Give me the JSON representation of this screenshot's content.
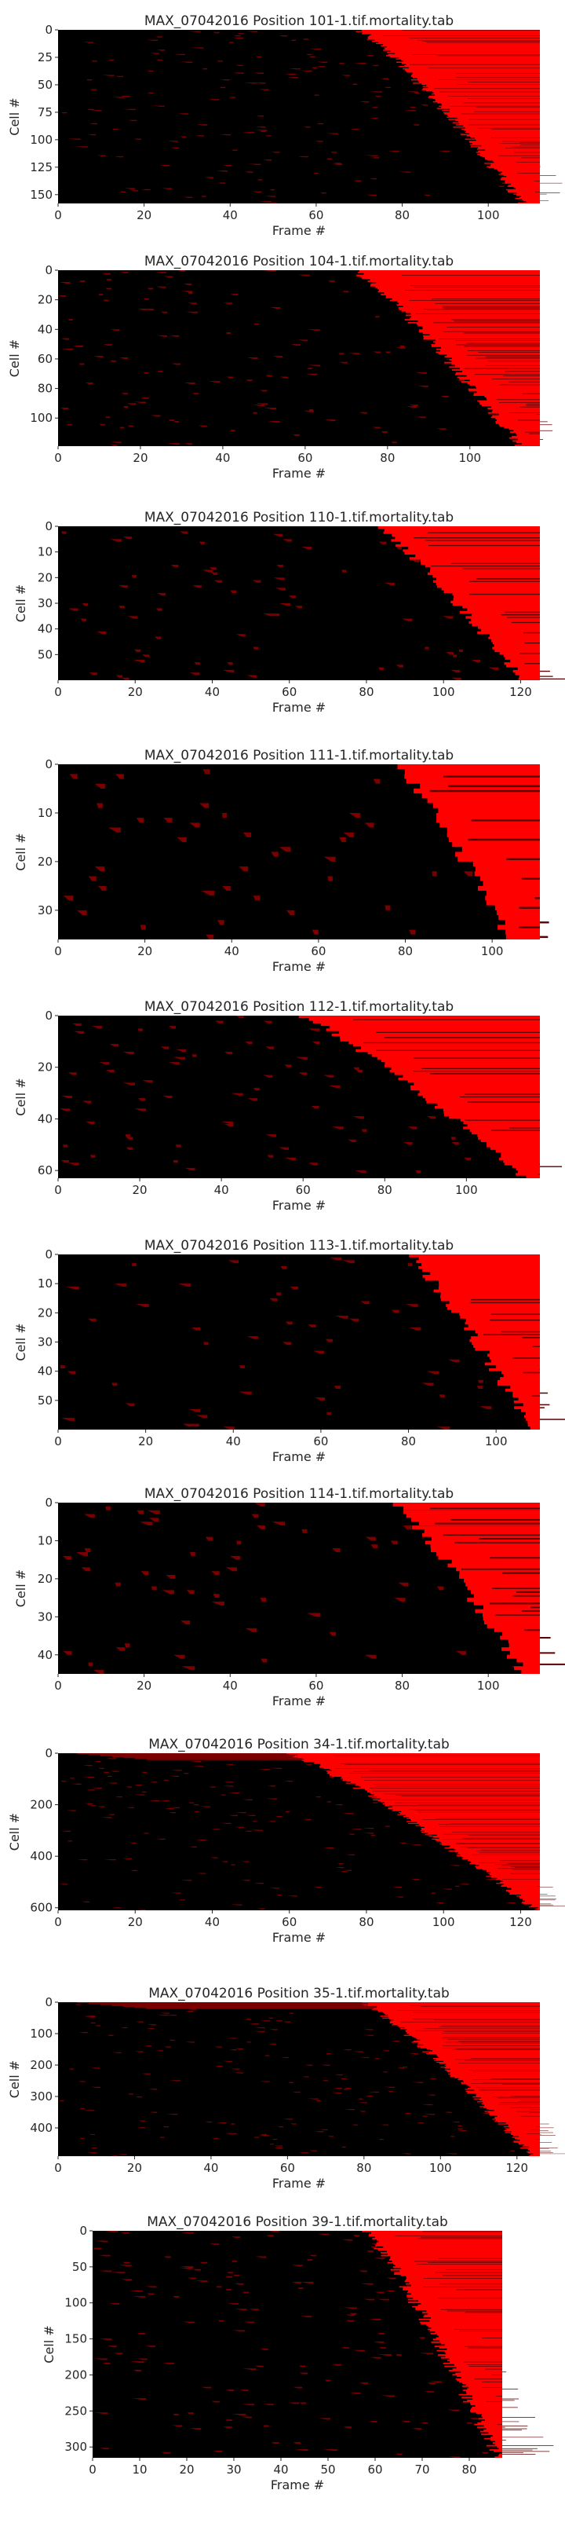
{
  "chart_data": [
    {
      "type": "heatmap",
      "title": "MAX_07042016 Position 101-1.tif.mortality.tab",
      "xlabel": "Frame #",
      "ylabel": "Cell #",
      "xlim": [
        0,
        112
      ],
      "ylim": [
        0,
        158
      ],
      "x_ticks": [
        0,
        20,
        40,
        60,
        80,
        100
      ],
      "y_ticks": [
        0,
        25,
        50,
        75,
        100,
        125,
        150
      ],
      "n_frames": 112,
      "n_cells": 158,
      "onset_frame_range": [
        70,
        108
      ],
      "early_band_rows": 0
    },
    {
      "type": "heatmap",
      "title": "MAX_07042016 Position 104-1.tif.mortality.tab",
      "xlabel": "Frame #",
      "ylabel": "Cell #",
      "xlim": [
        0,
        117
      ],
      "ylim": [
        0,
        119
      ],
      "x_ticks": [
        0,
        20,
        40,
        60,
        80,
        100
      ],
      "y_ticks": [
        0,
        20,
        40,
        60,
        80,
        100
      ],
      "n_frames": 117,
      "n_cells": 119,
      "onset_frame_range": [
        72,
        112
      ],
      "early_band_rows": 0
    },
    {
      "type": "heatmap",
      "title": "MAX_07042016 Position 110-1.tif.mortality.tab",
      "xlabel": "Frame #",
      "ylabel": "Cell #",
      "xlim": [
        0,
        125
      ],
      "ylim": [
        0,
        60
      ],
      "x_ticks": [
        0,
        20,
        40,
        60,
        80,
        100,
        120
      ],
      "y_ticks": [
        0,
        10,
        20,
        30,
        40,
        50
      ],
      "n_frames": 125,
      "n_cells": 60,
      "onset_frame_range": [
        83,
        120
      ],
      "early_band_rows": 0
    },
    {
      "type": "heatmap",
      "title": "MAX_07042016 Position 111-1.tif.mortality.tab",
      "xlabel": "Frame #",
      "ylabel": "Cell #",
      "xlim": [
        0,
        111
      ],
      "ylim": [
        0,
        36
      ],
      "x_ticks": [
        0,
        20,
        40,
        60,
        80,
        100
      ],
      "y_ticks": [
        0,
        10,
        20,
        30
      ],
      "n_frames": 111,
      "n_cells": 36,
      "onset_frame_range": [
        78,
        104
      ],
      "early_band_rows": 0
    },
    {
      "type": "heatmap",
      "title": "MAX_07042016 Position 112-1.tif.mortality.tab",
      "xlabel": "Frame #",
      "ylabel": "Cell #",
      "xlim": [
        0,
        118
      ],
      "ylim": [
        0,
        63
      ],
      "x_ticks": [
        0,
        20,
        40,
        60,
        80,
        100
      ],
      "y_ticks": [
        0,
        20,
        40,
        60
      ],
      "n_frames": 118,
      "n_cells": 63,
      "onset_frame_range": [
        60,
        114
      ],
      "early_band_rows": 0
    },
    {
      "type": "heatmap",
      "title": "MAX_07042016 Position 113-1.tif.mortality.tab",
      "xlabel": "Frame #",
      "ylabel": "Cell #",
      "xlim": [
        0,
        110
      ],
      "ylim": [
        0,
        60
      ],
      "x_ticks": [
        0,
        20,
        40,
        60,
        80,
        100
      ],
      "y_ticks": [
        0,
        10,
        20,
        30,
        40,
        50
      ],
      "n_frames": 110,
      "n_cells": 60,
      "onset_frame_range": [
        80,
        108
      ],
      "early_band_rows": 0
    },
    {
      "type": "heatmap",
      "title": "MAX_07042016 Position 114-1.tif.mortality.tab",
      "xlabel": "Frame #",
      "ylabel": "Cell #",
      "xlim": [
        0,
        112
      ],
      "ylim": [
        0,
        45
      ],
      "x_ticks": [
        0,
        20,
        40,
        60,
        80,
        100
      ],
      "y_ticks": [
        0,
        10,
        20,
        30,
        40
      ],
      "n_frames": 112,
      "n_cells": 45,
      "onset_frame_range": [
        78,
        108
      ],
      "early_band_rows": 0
    },
    {
      "type": "heatmap",
      "title": "MAX_07042016 Position 34-1.tif.mortality.tab",
      "xlabel": "Frame #",
      "ylabel": "Cell #",
      "xlim": [
        0,
        125
      ],
      "ylim": [
        0,
        610
      ],
      "x_ticks": [
        0,
        20,
        40,
        60,
        80,
        100,
        120
      ],
      "y_ticks": [
        0,
        200,
        400,
        600
      ],
      "n_frames": 125,
      "n_cells": 610,
      "onset_frame_range": [
        60,
        124
      ],
      "early_band_rows": 25
    },
    {
      "type": "heatmap",
      "title": "MAX_07042016 Position 35-1.tif.mortality.tab",
      "xlabel": "Frame #",
      "ylabel": "Cell #",
      "xlim": [
        0,
        126
      ],
      "ylim": [
        0,
        490
      ],
      "x_ticks": [
        0,
        20,
        40,
        60,
        80,
        100,
        120
      ],
      "y_ticks": [
        0,
        100,
        200,
        300,
        400
      ],
      "n_frames": 126,
      "n_cells": 490,
      "onset_frame_range": [
        80,
        124
      ],
      "early_band_rows": 20
    },
    {
      "type": "heatmap",
      "title": "MAX_07042016 Position 39-1.tif.mortality.tab",
      "xlabel": "Frame #",
      "ylabel": "Cell #",
      "xlim": [
        0,
        87
      ],
      "ylim": [
        0,
        315
      ],
      "x_ticks": [
        0,
        10,
        20,
        30,
        40,
        50,
        60,
        70,
        80
      ],
      "y_ticks": [
        0,
        50,
        100,
        150,
        200,
        250,
        300
      ],
      "n_frames": 87,
      "n_cells": 315,
      "onset_frame_range": [
        58,
        86
      ],
      "early_band_rows": 0
    }
  ],
  "colors": {
    "background": "#000000",
    "signal": "#ff0000",
    "text": "#262626"
  }
}
